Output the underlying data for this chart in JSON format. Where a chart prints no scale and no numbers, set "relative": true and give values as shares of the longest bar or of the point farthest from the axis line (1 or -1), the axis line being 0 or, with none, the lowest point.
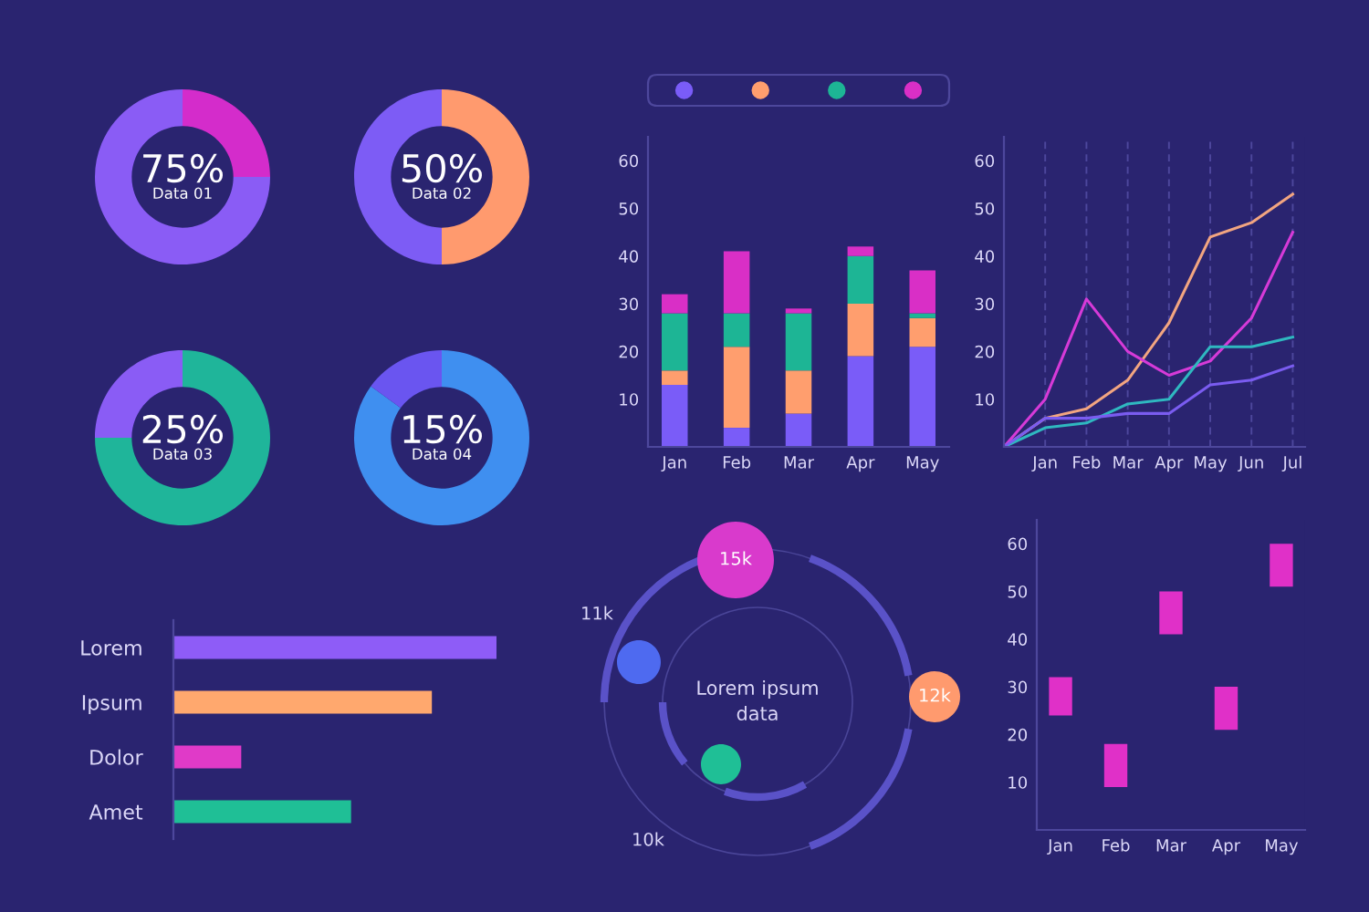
{
  "chart_data": [
    {
      "type": "donut",
      "categories": [
        null,
        null
      ],
      "values": [
        25,
        75
      ],
      "colors": [
        "#d42ccb",
        "#8a5cf5"
      ],
      "annotations": [
        "75%",
        "Data 01"
      ]
    },
    {
      "type": "donut",
      "categories": [
        null,
        null
      ],
      "values": [
        50,
        50
      ],
      "colors": [
        "#ff9a6e",
        "#7d5cf5"
      ],
      "annotations": [
        "50%",
        "Data 02"
      ]
    },
    {
      "type": "donut",
      "categories": [
        null,
        null
      ],
      "values": [
        75,
        25
      ],
      "colors": [
        "#1fb59a",
        "#8a5cf5"
      ],
      "annotations": [
        "25%",
        "Data 03"
      ]
    },
    {
      "type": "donut",
      "categories": [
        null,
        null
      ],
      "values": [
        85,
        15
      ],
      "colors": [
        "#3f8ff0",
        "#6a55f0"
      ],
      "annotations": [
        "15%",
        "Data 04"
      ]
    },
    {
      "type": "bar",
      "orientation": "horizontal",
      "relative": true,
      "categories": [
        "Lorem",
        "Ipsum",
        "Dolor",
        "Amet"
      ],
      "values": [
        1,
        0.8,
        0.21,
        0.55
      ],
      "colors": [
        "#8e5cf7",
        "#ffa86e",
        "#e03ac8",
        "#1fbf96"
      ]
    },
    {
      "type": "bar",
      "stacked": true,
      "categories": [
        "Jan",
        "Feb",
        "Mar",
        "Apr",
        "May"
      ],
      "ylim": [
        0,
        65
      ],
      "yticks": [
        10,
        20,
        30,
        40,
        50,
        60
      ],
      "series": [
        {
          "color": "#7a5cf8",
          "values": [
            13,
            4,
            7,
            19,
            21
          ]
        },
        {
          "color": "#ff9e6e",
          "values": [
            3,
            17,
            9,
            11,
            6
          ]
        },
        {
          "color": "#1db595",
          "values": [
            12,
            7,
            12,
            10,
            1
          ]
        },
        {
          "color": "#d92fc6",
          "values": [
            4,
            13,
            1,
            2,
            9
          ]
        }
      ]
    },
    {
      "type": "line",
      "categories": [
        null,
        "Jan",
        "Feb",
        "Mar",
        "Apr",
        "May",
        "Jun",
        "Jul"
      ],
      "grid": "x",
      "ylim": [
        0,
        65
      ],
      "yticks": [
        10,
        20,
        30,
        40,
        50,
        60
      ],
      "series": [
        {
          "color": "#f2a580",
          "values": [
            0,
            6,
            8,
            14,
            26,
            44,
            47,
            53
          ]
        },
        {
          "color": "#d63ad8",
          "values": [
            0,
            10,
            31,
            20,
            15,
            18,
            27,
            45
          ]
        },
        {
          "color": "#2fb8c0",
          "values": [
            0,
            4,
            5,
            9,
            10,
            21,
            21,
            23
          ]
        },
        {
          "color": "#7a5cf0",
          "values": [
            0,
            6,
            6,
            7,
            7,
            13,
            14,
            17
          ]
        }
      ]
    },
    {
      "type": "other",
      "annotations": [
        "15k",
        "11k",
        "12k",
        "10k",
        "Lorem ipsum data"
      ]
    },
    {
      "type": "bar",
      "categories": [
        "Jan",
        "Feb",
        "Mar",
        "Apr",
        "May"
      ],
      "base": [
        24,
        9,
        41,
        21,
        51
      ],
      "values": [
        8,
        9,
        9,
        9,
        9
      ],
      "color": "#e030c8",
      "ylim": [
        0,
        65
      ],
      "yticks": [
        10,
        20,
        30,
        40,
        50,
        60
      ]
    }
  ]
}
